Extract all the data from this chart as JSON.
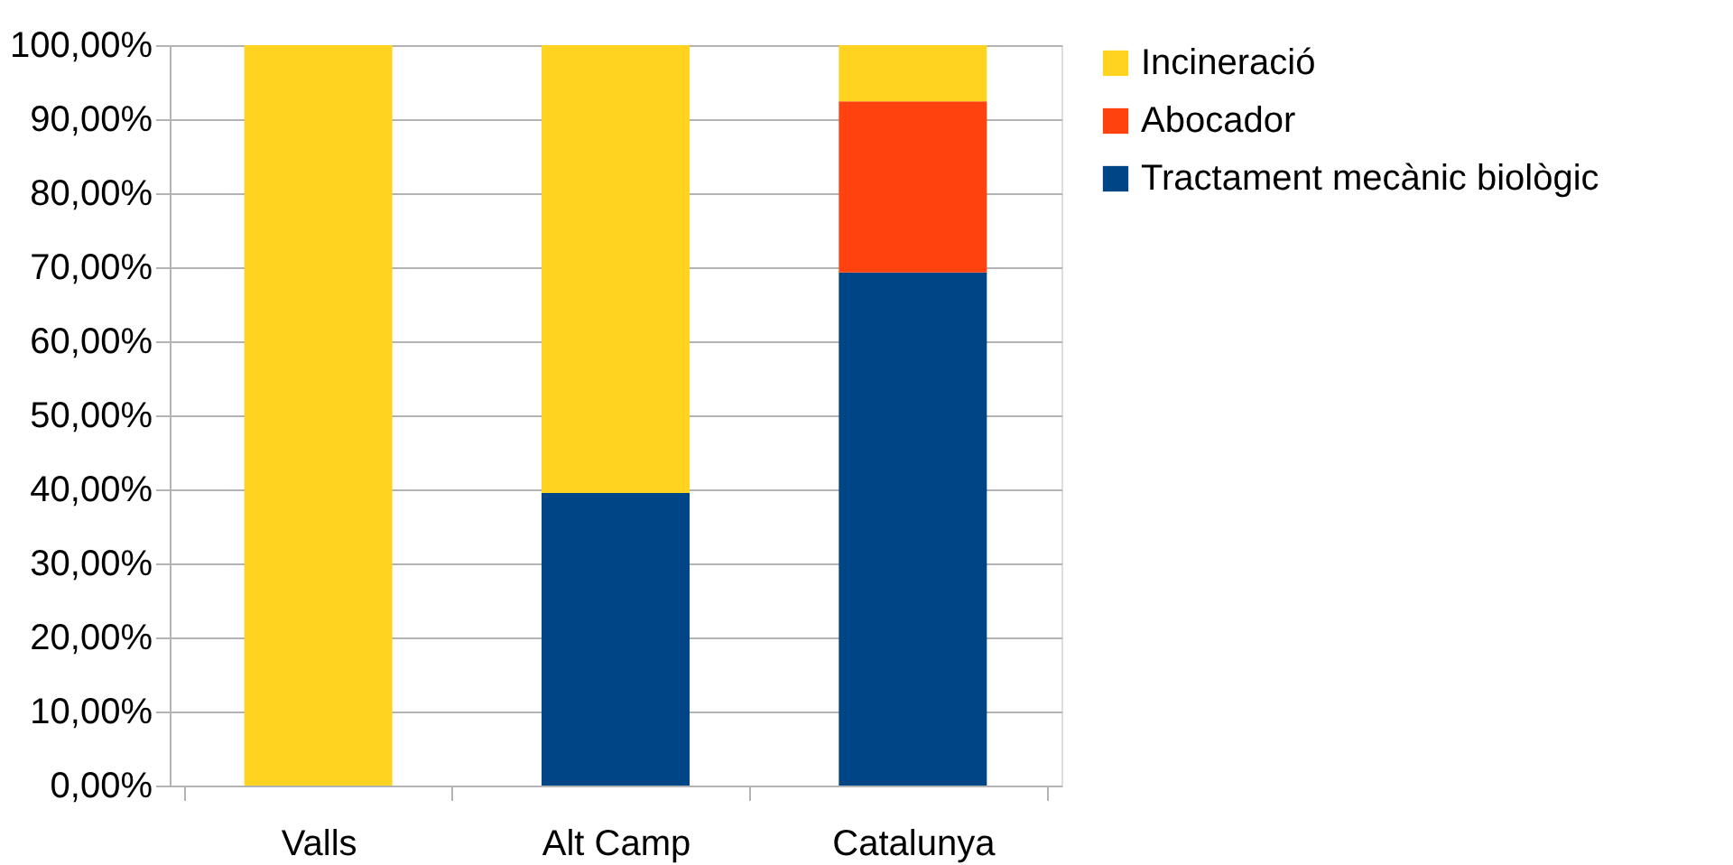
{
  "chart_data": {
    "type": "bar",
    "stacked": true,
    "categories": [
      "Valls",
      "Alt Camp",
      "Catalunya"
    ],
    "series": [
      {
        "name": "Tractament mecànic biològic",
        "color": "#004586",
        "values": [
          0,
          39.5,
          69.3
        ]
      },
      {
        "name": "Abocador",
        "color": "#ff420e",
        "values": [
          0,
          0,
          23.1
        ]
      },
      {
        "name": "Incineració",
        "color": "#ffd320",
        "values": [
          100,
          60.5,
          7.6
        ]
      }
    ],
    "ylim": [
      0,
      100
    ],
    "yticks": [
      {
        "value": 0,
        "label": "0,00%"
      },
      {
        "value": 10,
        "label": "10,00%"
      },
      {
        "value": 20,
        "label": "20,00%"
      },
      {
        "value": 30,
        "label": "30,00%"
      },
      {
        "value": 40,
        "label": "40,00%"
      },
      {
        "value": 50,
        "label": "50,00%"
      },
      {
        "value": 60,
        "label": "60,00%"
      },
      {
        "value": 70,
        "label": "70,00%"
      },
      {
        "value": 80,
        "label": "80,00%"
      },
      {
        "value": 90,
        "label": "90,00%"
      },
      {
        "value": 100,
        "label": "100,00%"
      }
    ],
    "grid": "y",
    "legend": "right"
  }
}
